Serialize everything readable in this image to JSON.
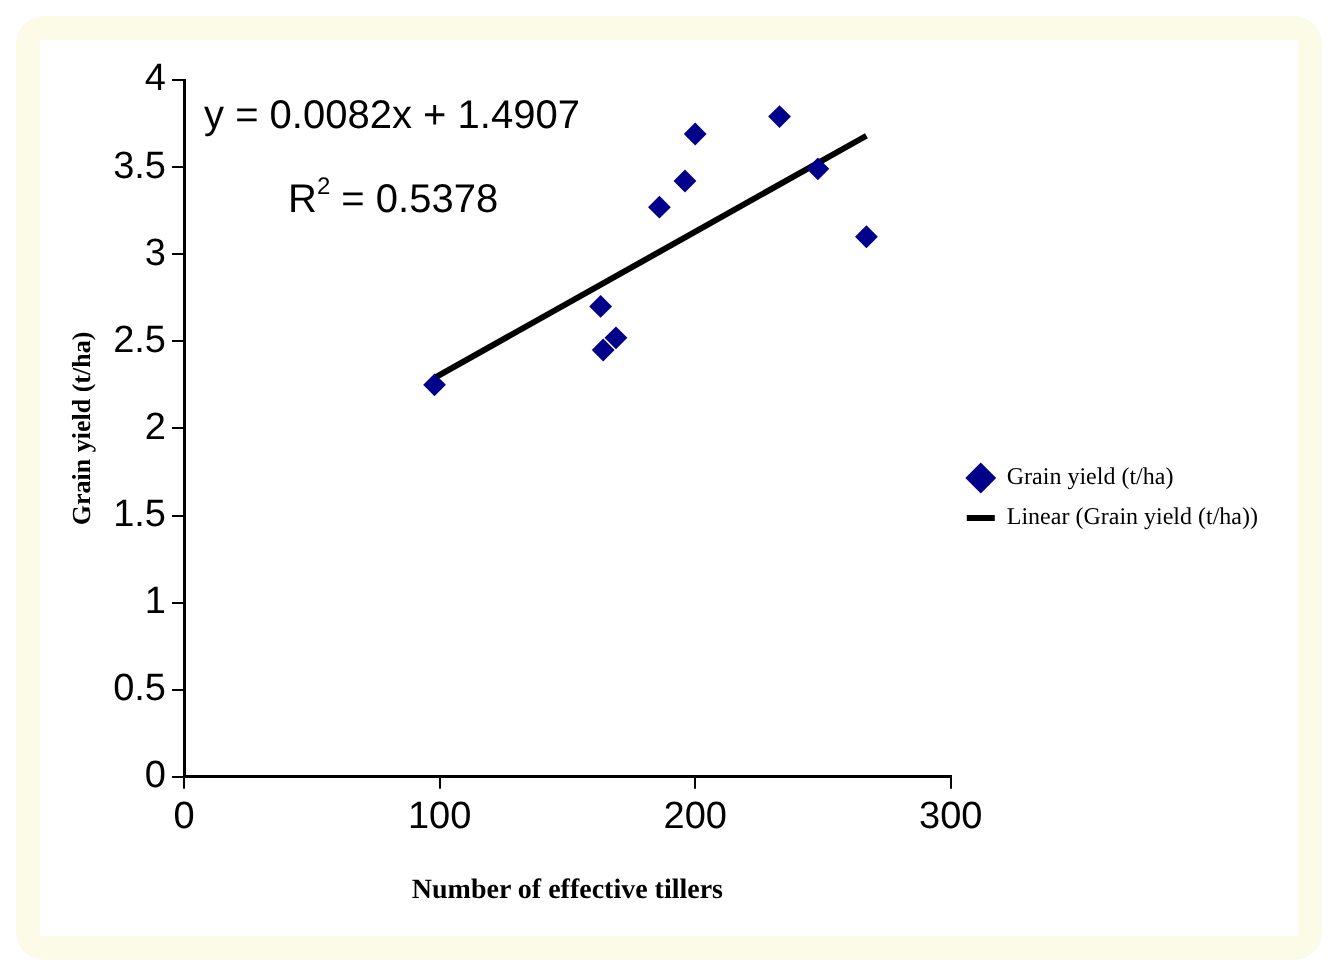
{
  "chart_data": {
    "type": "scatter",
    "xlabel": "Number of effective tillers",
    "ylabel": "Grain yield (t/ha)",
    "annotations": [
      "y = 0.0082x + 1.4907",
      "R$^{2}$ = 0.5378"
    ],
    "series": [
      {
        "name": "Grain yield (t/ha)",
        "color": "#00008b",
        "marker": "diamond",
        "x": [
          98,
          163,
          164,
          169,
          186,
          196,
          200,
          233,
          248,
          267
        ],
        "values": [
          2.25,
          2.7,
          2.45,
          2.52,
          3.27,
          3.42,
          3.69,
          3.79,
          3.49,
          3.1
        ]
      },
      {
        "name": "Linear (Grain yield (t/ha))",
        "type": "line",
        "color": "#000000",
        "marker": "none",
        "line_style": "solid",
        "x": [
          98,
          267
        ],
        "values": [
          2.29,
          3.68
        ]
      }
    ],
    "xlim": [
      0,
      300
    ],
    "xticks": [
      0,
      100,
      200,
      300
    ],
    "ylim": [
      0,
      4
    ],
    "yticks": [
      0,
      0.5,
      1,
      1.5,
      2,
      2.5,
      3,
      3.5,
      4
    ],
    "grid": false,
    "legend": "right"
  }
}
